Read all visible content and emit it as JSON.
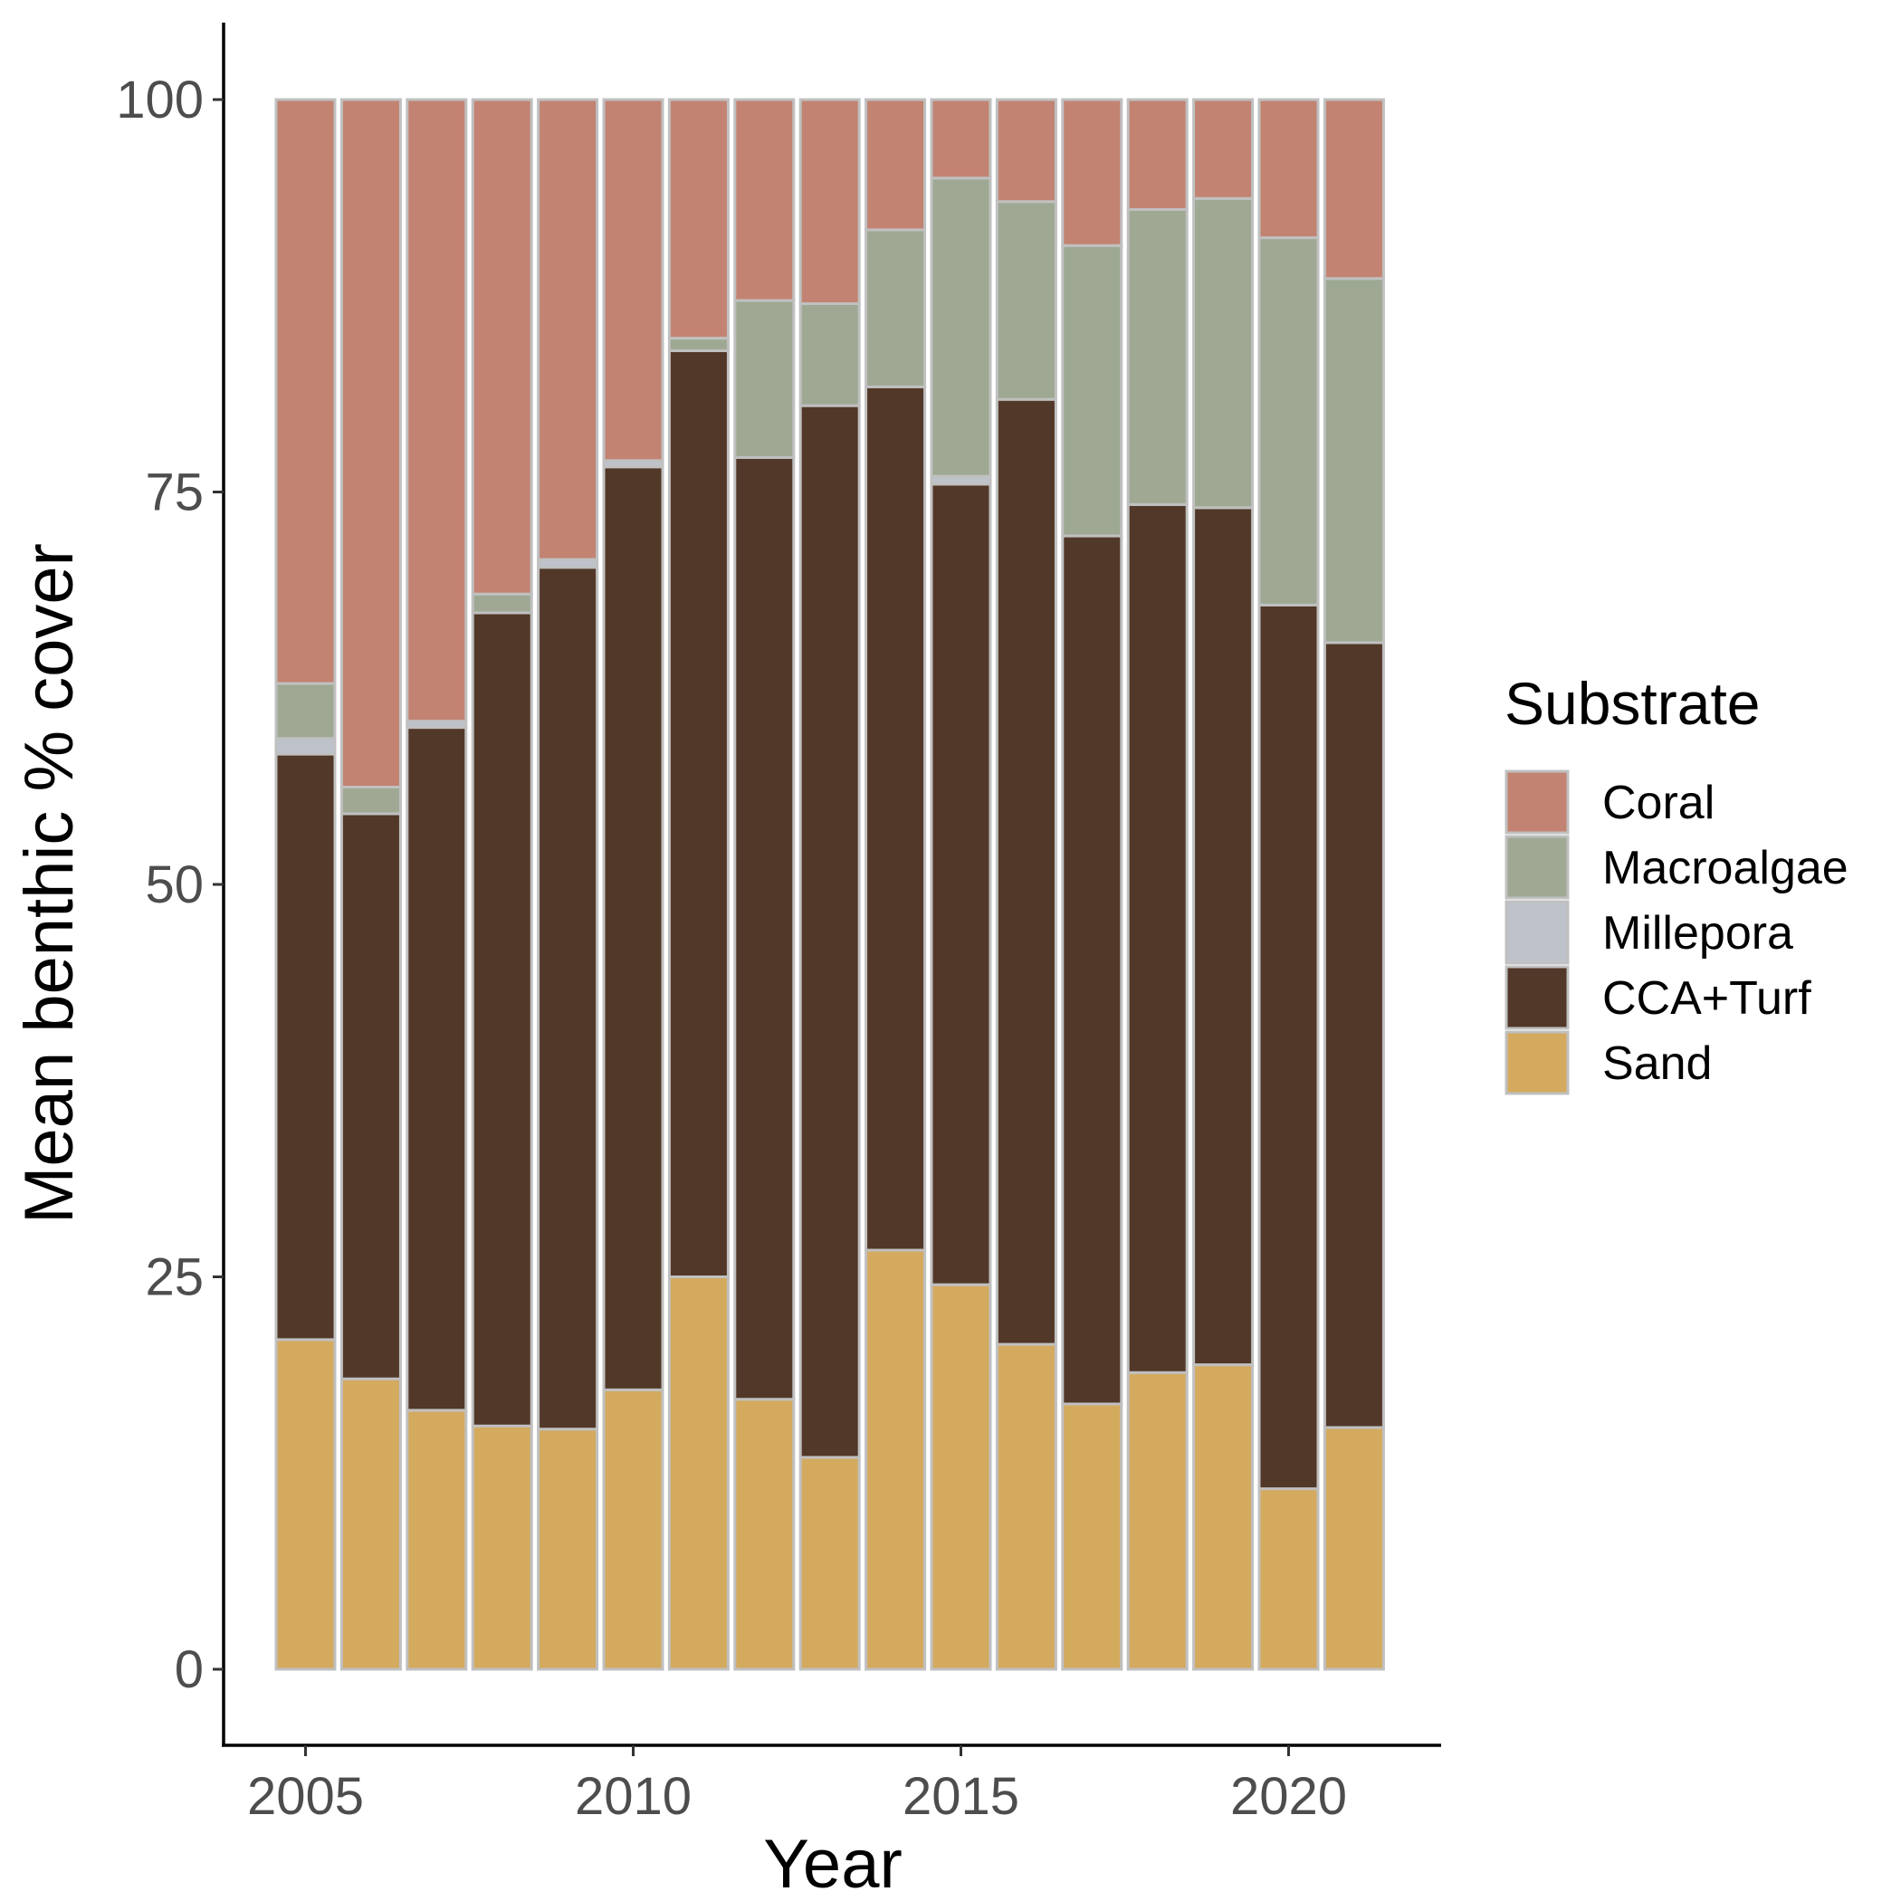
{
  "chart_data": {
    "type": "bar",
    "stacked": true,
    "xlabel": "Year",
    "ylabel": "Mean benthic % cover",
    "ylim": [
      0,
      100
    ],
    "yticks": [
      0,
      25,
      50,
      75,
      100
    ],
    "xticks": [
      2005,
      2010,
      2015,
      2020
    ],
    "grid": false,
    "legend": {
      "title": "Substrate",
      "position": "right",
      "entries": [
        "Coral",
        "Macroalgae",
        "Millepora",
        "CCA+Turf",
        "Sand"
      ]
    },
    "categories": [
      2005,
      2006,
      2007,
      2008,
      2009,
      2010,
      2011,
      2012,
      2013,
      2014,
      2015,
      2016,
      2017,
      2018,
      2019,
      2020,
      2021
    ],
    "series": [
      {
        "name": "Sand",
        "color": "#D4AA5F",
        "values": [
          21.0,
          18.5,
          16.5,
          15.5,
          15.3,
          17.8,
          25.0,
          17.2,
          13.5,
          26.7,
          24.5,
          20.7,
          16.9,
          18.9,
          19.4,
          11.5,
          15.4
        ]
      },
      {
        "name": "CCA+Turf",
        "color": "#523828",
        "values": [
          37.3,
          36.0,
          43.5,
          51.8,
          54.9,
          58.8,
          59.0,
          60.0,
          67.0,
          55.0,
          51.0,
          60.2,
          55.3,
          55.3,
          54.6,
          56.3,
          50.0
        ]
      },
      {
        "name": "Millepora",
        "color": "#BEC3CB",
        "values": [
          1.0,
          0.0,
          0.4,
          0.0,
          0.5,
          0.4,
          0.0,
          0.0,
          0.0,
          0.0,
          0.5,
          0.0,
          0.0,
          0.0,
          0.0,
          0.0,
          0.0
        ]
      },
      {
        "name": "Macroalgae",
        "color": "#9EA893",
        "values": [
          3.5,
          1.7,
          0.0,
          1.2,
          0.0,
          0.0,
          0.8,
          10.0,
          6.5,
          10.0,
          19.0,
          12.6,
          18.5,
          18.8,
          19.7,
          23.4,
          23.2
        ]
      },
      {
        "name": "Coral",
        "color": "#C28372",
        "values": [
          37.2,
          43.8,
          39.6,
          31.5,
          29.3,
          23.0,
          15.2,
          12.8,
          13.0,
          8.3,
          5.0,
          6.5,
          9.3,
          7.0,
          6.3,
          8.8,
          11.4
        ]
      }
    ],
    "bar_outline_color": "#C0C0C0"
  }
}
